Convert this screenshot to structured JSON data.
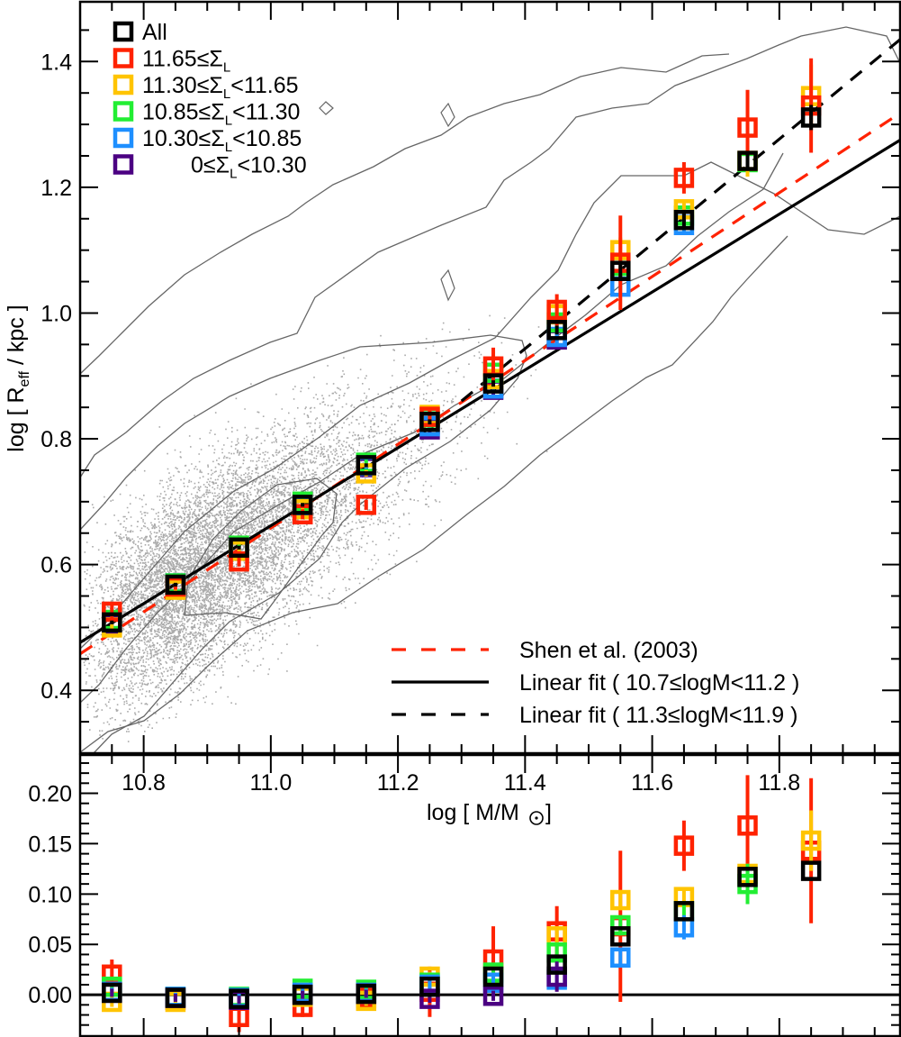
{
  "chart_data": [
    {
      "panel": "top",
      "type": "scatter",
      "ylabel": "log [ R_eff / kpc ]",
      "ylabel_parts": {
        "pre": "log [ R",
        "sub": "eff",
        "post": " / kpc ]"
      },
      "xlabel": "log [ M/M☉ ]",
      "xlim": [
        10.7,
        11.99
      ],
      "ylim": [
        0.3,
        1.495
      ],
      "grid": false,
      "yticks": [
        0.4,
        0.6,
        0.8,
        1.0,
        1.2,
        1.4
      ],
      "ytick_labels": [
        "0.4",
        "0.6",
        "0.8",
        "1.0",
        "1.2",
        "1.4"
      ],
      "xticks": [
        10.8,
        11.0,
        11.2,
        11.4,
        11.6,
        11.8
      ],
      "x": [
        10.75,
        10.85,
        10.95,
        11.05,
        11.15,
        11.25,
        11.35,
        11.45,
        11.55,
        11.65,
        11.75,
        11.85
      ],
      "series": [
        {
          "name": "0≤Σ_L<10.30",
          "label_pre": "0≤Σ",
          "label_sub": "L",
          "label_post": "<10.30",
          "color": "#4B0082",
          "values": [
            0.505,
            0.565,
            0.622,
            0.69,
            0.755,
            0.815,
            0.878,
            0.958,
            null,
            null,
            null,
            null
          ],
          "err": [
            0.005,
            0.005,
            0.005,
            0.005,
            0.005,
            0.006,
            0.008,
            0.012,
            null,
            null,
            null,
            null
          ]
        },
        {
          "name": "10.30≤Σ_L<10.85",
          "label_pre": "10.30≤Σ",
          "label_sub": "L",
          "label_post": "<10.85",
          "color": "#1E8FFF",
          "values": [
            0.51,
            0.57,
            0.628,
            0.693,
            0.757,
            0.82,
            0.88,
            0.962,
            1.042,
            1.14,
            null,
            null
          ],
          "err": [
            0.005,
            0.005,
            0.005,
            0.005,
            0.005,
            0.006,
            0.008,
            0.012,
            0.012,
            0.015,
            null,
            null
          ]
        },
        {
          "name": "10.85≤Σ_L<11.30",
          "label_pre": "10.85≤Σ",
          "label_sub": "L",
          "label_post": "<11.30",
          "color": "#22EE33",
          "values": [
            0.512,
            0.57,
            0.63,
            0.7,
            0.762,
            0.834,
            0.905,
            0.985,
            1.075,
            1.155,
            1.24,
            null
          ],
          "err": [
            0.005,
            0.005,
            0.005,
            0.005,
            0.005,
            0.006,
            0.008,
            0.012,
            0.015,
            0.015,
            0.022,
            null
          ]
        },
        {
          "name": "11.30≤Σ_L<11.65",
          "label_pre": "11.30≤Σ",
          "label_sub": "L",
          "label_post": "<11.65",
          "color": "#FFC400",
          "values": [
            0.5,
            0.56,
            0.622,
            0.688,
            0.745,
            0.838,
            0.895,
            0.998,
            1.1,
            1.165,
            1.242,
            1.345
          ],
          "err": [
            0.005,
            0.005,
            0.005,
            0.005,
            0.005,
            0.006,
            0.008,
            0.012,
            0.02,
            0.015,
            0.025,
            0.05
          ]
        },
        {
          "name": "11.65≤Σ_L",
          "label_pre": "11.65≤Σ",
          "label_sub": "L",
          "label_post": "",
          "color": "#FF2200",
          "values": [
            0.525,
            0.565,
            0.605,
            0.68,
            0.695,
            0.835,
            0.915,
            1.005,
            1.08,
            1.215,
            1.295,
            1.33
          ],
          "err": [
            0.01,
            0.005,
            0.008,
            0.008,
            0.008,
            0.01,
            0.03,
            0.025,
            0.075,
            0.025,
            0.06,
            0.075
          ]
        },
        {
          "name": "All",
          "label_pre": "All",
          "label_sub": "",
          "label_post": "",
          "color": "#000000",
          "values": [
            0.508,
            0.568,
            0.627,
            0.695,
            0.758,
            0.827,
            0.888,
            0.973,
            1.067,
            1.148,
            1.242,
            1.311
          ],
          "err": [
            0.003,
            0.003,
            0.003,
            0.003,
            0.003,
            0.004,
            0.005,
            0.007,
            0.01,
            0.012,
            0.015,
            0.02
          ]
        }
      ],
      "lines": [
        {
          "name": "Shen et al. (2003)",
          "color": "#FF2200",
          "style": "dashed",
          "x": [
            10.7,
            11.99
          ],
          "y": [
            0.458,
            1.318
          ]
        },
        {
          "name": "Linear fit ( 10.7≤logM<11.2 )",
          "color": "#000000",
          "style": "solid",
          "x": [
            10.7,
            11.99
          ],
          "y": [
            0.476,
            1.275
          ]
        },
        {
          "name": "Linear fit ( 11.3≤logM<11.9 )",
          "color": "#000000",
          "style": "dashed",
          "x": [
            11.3,
            11.99
          ],
          "y": [
            0.86,
            1.435
          ]
        }
      ],
      "contours": [
        {
          "level": 1,
          "points": [
            [
              11.03,
              0.3
            ],
            [
              10.98,
              0.34
            ],
            [
              10.93,
              0.4
            ],
            [
              10.88,
              0.46
            ],
            [
              10.82,
              0.52
            ],
            [
              10.77,
              0.57
            ],
            [
              10.71,
              0.62
            ]
          ]
        },
        {
          "level": 2,
          "points": [
            [
              10.77,
              0.3
            ],
            [
              10.72,
              0.34
            ]
          ]
        },
        {
          "level": 3,
          "points": [
            [
              10.98,
              0.59
            ],
            [
              11.0,
              0.62
            ],
            [
              11.05,
              0.67
            ],
            [
              11.1,
              0.71
            ],
            [
              11.14,
              0.75
            ],
            [
              11.17,
              0.79
            ],
            [
              11.14,
              0.81
            ],
            [
              11.07,
              0.8
            ],
            [
              10.98,
              0.75
            ],
            [
              10.93,
              0.69
            ],
            [
              10.9,
              0.64
            ],
            [
              10.92,
              0.59
            ],
            [
              10.98,
              0.59
            ]
          ]
        }
      ],
      "legend_markers": [
        "All",
        "11.65≤Σ_L",
        "11.30≤Σ_L<11.65",
        "10.85≤Σ_L<11.30",
        "10.30≤Σ_L<10.85",
        "0≤Σ_L<10.30"
      ],
      "legend_lines": [
        "Shen et al. (2003)",
        "Linear fit ( 10.7≤logM<11.2 )",
        "Linear fit ( 11.3≤logM<11.9 )"
      ],
      "legend_marker_placement": "top-left",
      "legend_line_placement": "bottom-right"
    },
    {
      "panel": "bottom",
      "type": "scatter",
      "xlim": [
        10.7,
        11.99
      ],
      "ylim": [
        -0.041,
        0.238
      ],
      "yticks": [
        0.0,
        0.05,
        0.1,
        0.15,
        0.2
      ],
      "ytick_labels": [
        "0.00",
        "0.05",
        "0.10",
        "0.15",
        "0.20"
      ],
      "xticks": [
        10.8,
        11.0,
        11.2,
        11.4,
        11.6,
        11.8
      ],
      "xtick_labels": [
        "10.8",
        "11.0",
        "11.2",
        "11.4",
        "11.6",
        "11.8"
      ],
      "xlabel": "log [ M/M☉ ]",
      "hline": 0.0,
      "x": [
        10.75,
        10.85,
        10.95,
        11.05,
        11.15,
        11.25,
        11.35,
        11.45,
        11.55,
        11.65,
        11.75,
        11.85
      ],
      "series": [
        {
          "name": "11.65≤Σ_L",
          "color": "#FF2200",
          "values": [
            0.02,
            -0.005,
            -0.022,
            -0.012,
            -0.003,
            0.003,
            0.035,
            0.063,
            0.068,
            0.148,
            0.168,
            0.143
          ],
          "err": [
            0.015,
            0.005,
            0.015,
            0.01,
            0.005,
            0.025,
            0.033,
            0.025,
            0.075,
            0.025,
            0.05,
            0.072
          ]
        },
        {
          "name": "11.30≤Σ_L<11.65",
          "color": "#FFC400",
          "values": [
            -0.007,
            -0.007,
            -0.003,
            -0.002,
            -0.006,
            0.018,
            0.02,
            0.058,
            0.094,
            0.097,
            0.12,
            0.153
          ],
          "err": [
            0.005,
            0.005,
            0.005,
            0.005,
            0.005,
            0.005,
            0.008,
            0.01,
            0.01,
            0.01,
            0.01,
            0.03
          ]
        },
        {
          "name": "10.85≤Σ_L<11.30",
          "color": "#22EE33",
          "values": [
            0.008,
            -0.002,
            -0.002,
            0.006,
            0.005,
            0.012,
            0.022,
            0.042,
            0.069,
            0.083,
            0.11,
            null
          ],
          "err": [
            0.004,
            0.004,
            0.004,
            0.004,
            0.004,
            0.005,
            0.006,
            0.008,
            0.01,
            0.01,
            0.02,
            null
          ]
        },
        {
          "name": "10.30≤Σ_L<10.85",
          "color": "#1E8FFF",
          "values": [
            0.003,
            -0.002,
            -0.003,
            0.002,
            0.002,
            0.01,
            0.012,
            0.015,
            0.037,
            0.067,
            null,
            null
          ],
          "err": [
            0.004,
            0.004,
            0.004,
            0.004,
            0.004,
            0.005,
            0.006,
            0.008,
            0.008,
            0.012,
            null,
            null
          ]
        },
        {
          "name": "0≤Σ_L<10.30",
          "color": "#4B0082",
          "values": [
            0.002,
            -0.003,
            -0.005,
            0.0,
            0.001,
            -0.004,
            -0.001,
            0.018,
            null,
            null,
            null,
            null
          ],
          "err": [
            0.004,
            0.004,
            0.004,
            0.004,
            0.004,
            0.004,
            0.005,
            0.015,
            null,
            null,
            null,
            null
          ]
        },
        {
          "name": "All",
          "color": "#000000",
          "values": [
            0.002,
            -0.003,
            -0.004,
            0.0,
            0.001,
            0.008,
            0.018,
            0.03,
            0.058,
            0.083,
            0.117,
            0.123
          ],
          "err": [
            0,
            0,
            0,
            0,
            0,
            0,
            0,
            0,
            0,
            0,
            0,
            0
          ]
        }
      ]
    }
  ]
}
